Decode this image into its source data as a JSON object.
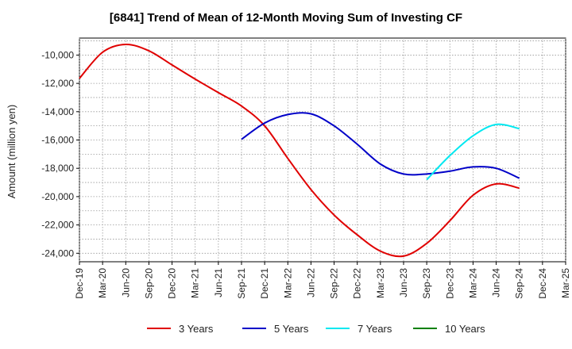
{
  "chart_data": {
    "type": "line",
    "title": "[6841]  Trend of Mean of 12-Month Moving Sum of Investing CF",
    "xlabel": "",
    "ylabel": "Amount (million yen)",
    "ylim": [
      -24600,
      -8800
    ],
    "yticks": [
      -10000,
      -12000,
      -14000,
      -16000,
      -18000,
      -20000,
      -22000,
      -24000
    ],
    "ytick_labels": [
      "-10,000",
      "-12,000",
      "-14,000",
      "-16,000",
      "-18,000",
      "-20,000",
      "-22,000",
      "-24,000"
    ],
    "x_ticks": [
      "Dec-19",
      "Mar-20",
      "Jun-20",
      "Sep-20",
      "Dec-20",
      "Mar-21",
      "Jun-21",
      "Sep-21",
      "Dec-21",
      "Mar-22",
      "Jun-22",
      "Sep-22",
      "Dec-22",
      "Mar-23",
      "Jun-23",
      "Sep-23",
      "Dec-23",
      "Mar-24",
      "Jun-24",
      "Sep-24",
      "Dec-24",
      "Mar-25"
    ],
    "grid": true,
    "legend_position": "bottom",
    "series": [
      {
        "name": "3 Years",
        "color": "#e00000",
        "x": [
          "Dec-19",
          "Mar-20",
          "Jun-20",
          "Sep-20",
          "Dec-20",
          "Mar-21",
          "Jun-21",
          "Sep-21",
          "Dec-21",
          "Mar-22",
          "Jun-22",
          "Sep-22",
          "Dec-22",
          "Mar-23",
          "Jun-23",
          "Sep-23",
          "Dec-23",
          "Mar-24",
          "Jun-24",
          "Sep-24"
        ],
        "values": [
          -11650,
          -9800,
          -9250,
          -9700,
          -10700,
          -11700,
          -12650,
          -13600,
          -15000,
          -17300,
          -19500,
          -21300,
          -22700,
          -23850,
          -24200,
          -23300,
          -21700,
          -19900,
          -19100,
          -19400
        ]
      },
      {
        "name": "5 Years",
        "color": "#0000c8",
        "x": [
          "Sep-21",
          "Dec-21",
          "Mar-22",
          "Jun-22",
          "Sep-22",
          "Dec-22",
          "Mar-23",
          "Jun-23",
          "Sep-23",
          "Dec-23",
          "Mar-24",
          "Jun-24",
          "Sep-24"
        ],
        "values": [
          -15950,
          -14800,
          -14200,
          -14150,
          -15000,
          -16300,
          -17700,
          -18400,
          -18400,
          -18200,
          -17900,
          -18000,
          -18700
        ]
      },
      {
        "name": "7 Years",
        "color": "#00e8f0",
        "x": [
          "Sep-23",
          "Dec-23",
          "Mar-24",
          "Jun-24",
          "Sep-24"
        ],
        "values": [
          -18800,
          -17100,
          -15700,
          -14900,
          -15200
        ]
      },
      {
        "name": "10 Years",
        "color": "#008000",
        "x": [],
        "values": []
      }
    ]
  }
}
